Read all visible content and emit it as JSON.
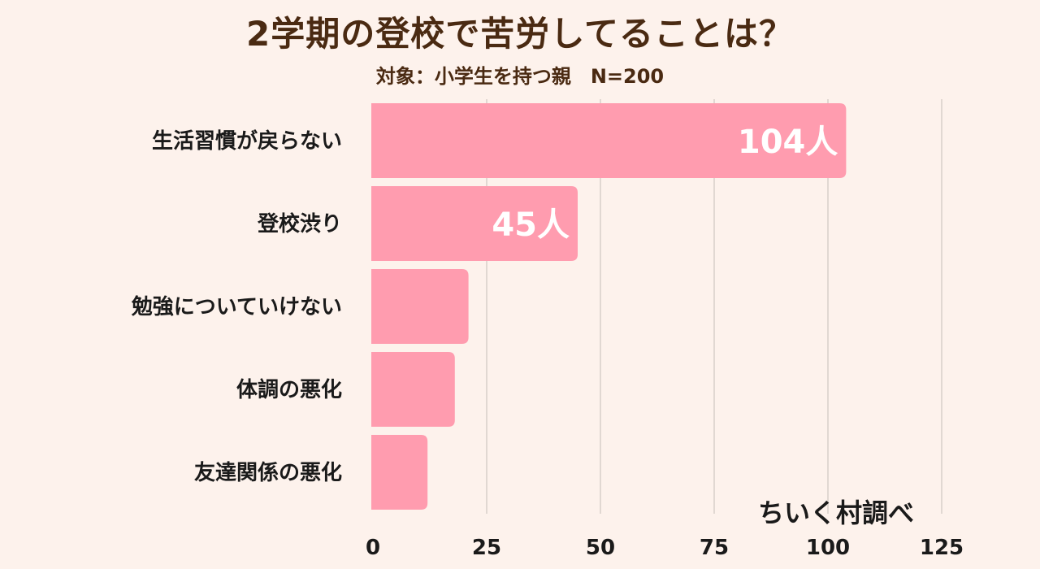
{
  "header": {
    "title": "2学期の登校で苦労してることは？",
    "subtitle": "対象：小学生を持つ親　N=200"
  },
  "credit": "ちいく村調べ",
  "chart_data": {
    "type": "bar",
    "orientation": "horizontal",
    "categories": [
      "生活習慣が戻らない",
      "登校渋り",
      "勉強についていけない",
      "体調の悪化",
      "友達関係の悪化"
    ],
    "values": [
      104,
      45,
      21,
      18,
      12
    ],
    "data_labels": [
      "104人",
      "45人",
      "",
      "",
      ""
    ],
    "xticks": [
      "0",
      "25",
      "50",
      "75",
      "100",
      "125"
    ],
    "xlim": [
      0,
      125
    ],
    "grid": true,
    "bar_color": "#ff9caf",
    "grid_color": "#d8cfca"
  }
}
